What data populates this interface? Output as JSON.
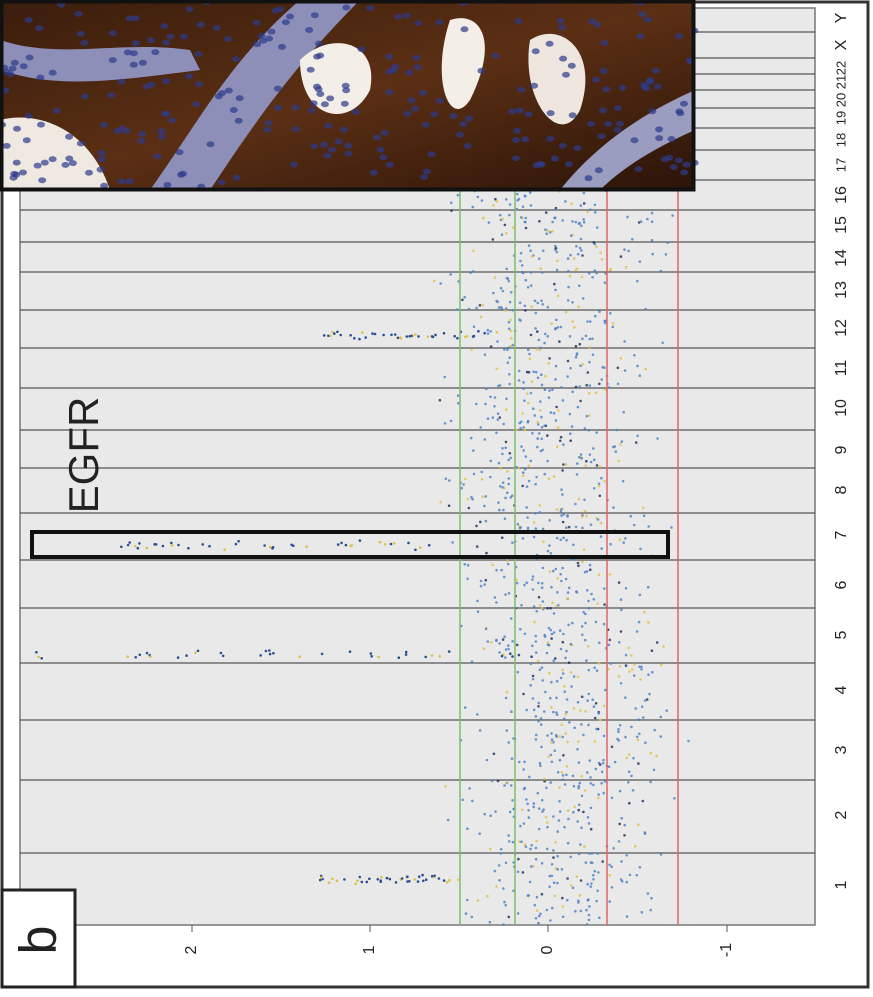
{
  "panel_label": "b",
  "annotation": "EGFR",
  "axis": {
    "tick_labels": [
      "2",
      "1",
      "0",
      "-1"
    ]
  },
  "chromosomes": [
    "1",
    "2",
    "3",
    "4",
    "5",
    "6",
    "7",
    "8",
    "9",
    "10",
    "11",
    "12",
    "13",
    "14",
    "15",
    "16",
    "17",
    "18",
    "19",
    "20",
    "21",
    "22",
    "X",
    "Y"
  ]
}
